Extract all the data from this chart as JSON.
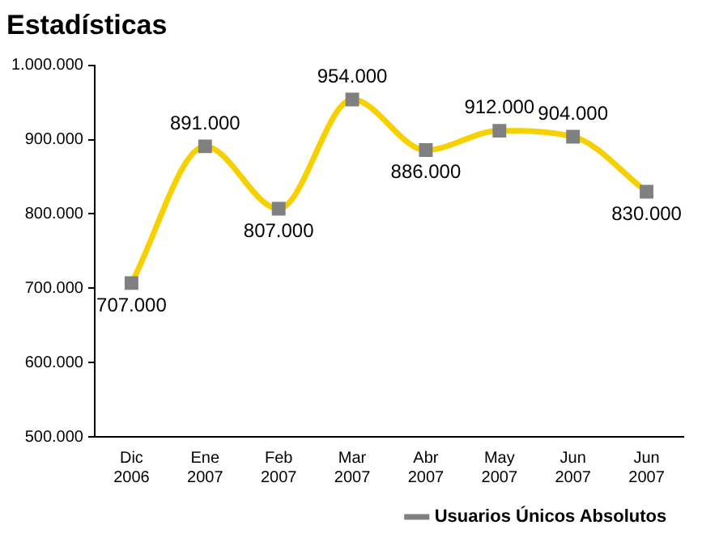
{
  "chart_data": {
    "type": "line",
    "title": "Estadísticas",
    "categories": [
      "Dic 2006",
      "Ene 2007",
      "Feb 2007",
      "Mar 2007",
      "Abr 2007",
      "May 2007",
      "Jun 2007",
      "Jun 2007"
    ],
    "series": [
      {
        "name": "Usuarios Únicos Absolutos",
        "color": "#f7d000",
        "values": [
          707000,
          891000,
          807000,
          954000,
          886000,
          912000,
          904000,
          830000
        ],
        "value_labels": [
          "707.000",
          "891.000",
          "807.000",
          "954.000",
          "886.000",
          "912.000",
          "904.000",
          "830.000"
        ]
      }
    ],
    "ylim": [
      500000,
      1000000
    ],
    "yticks": [
      {
        "value": 500000,
        "label": "500.000"
      },
      {
        "value": 600000,
        "label": "600.000"
      },
      {
        "value": 700000,
        "label": "700.000"
      },
      {
        "value": 800000,
        "label": "800.000"
      },
      {
        "value": 900000,
        "label": "900.000"
      },
      {
        "value": 1000000,
        "label": "1.000.000"
      }
    ],
    "grid": false,
    "legend": "bottom right",
    "marker": "square",
    "line_style": "solid"
  }
}
